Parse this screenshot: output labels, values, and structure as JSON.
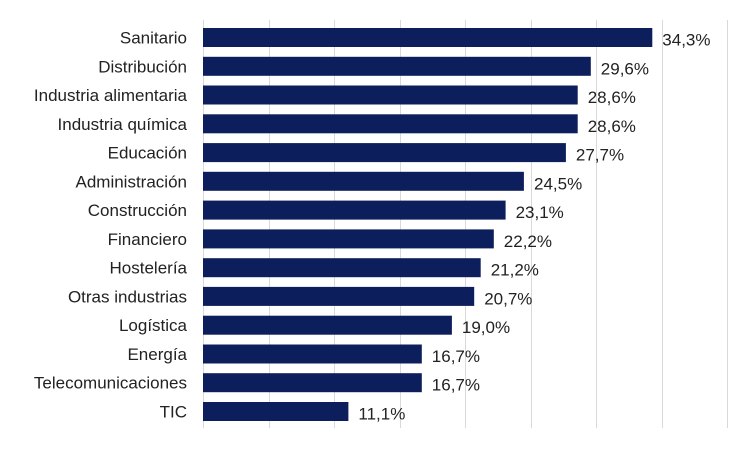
{
  "chart_data": {
    "type": "bar",
    "orientation": "horizontal",
    "categories": [
      "Sanitario",
      "Distribución",
      "Industria alimentaria",
      "Industria química",
      "Educación",
      "Administración",
      "Construcción",
      "Financiero",
      "Hostelería",
      "Otras industrias",
      "Logística",
      "Energía",
      "Telecomunicaciones",
      "TIC"
    ],
    "values": [
      34.3,
      29.6,
      28.6,
      28.6,
      27.7,
      24.5,
      23.1,
      22.2,
      21.2,
      20.7,
      19.0,
      16.7,
      16.7,
      11.1
    ],
    "value_labels": [
      "34,3%",
      "29,6%",
      "28,6%",
      "28,6%",
      "27,7%",
      "24,5%",
      "23,1%",
      "22,2%",
      "21,2%",
      "20,7%",
      "19,0%",
      "16,7%",
      "16,7%",
      "11,1%"
    ],
    "xlim": [
      0,
      40
    ],
    "grid": true,
    "bar_color": "#0c1f5c",
    "grid_color": "#d9d9d9",
    "label_color": "#222222"
  }
}
